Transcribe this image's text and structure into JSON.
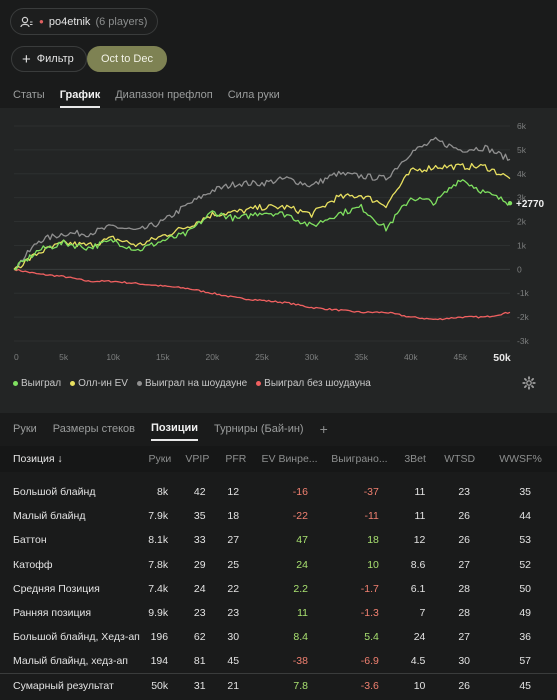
{
  "player": {
    "icon": "users-icon",
    "name": "po4etnik",
    "count": "(6 players)"
  },
  "filters": {
    "filter_label": "Фильтр",
    "date_label": "Oct to Dec"
  },
  "top_tabs": [
    {
      "label": "Статы",
      "active": false
    },
    {
      "label": "График",
      "active": true
    },
    {
      "label": "Диапазон префлоп",
      "active": false
    },
    {
      "label": "Сила руки",
      "active": false
    }
  ],
  "chart_data": {
    "type": "line",
    "x_ticks": [
      "0",
      "5k",
      "10k",
      "15k",
      "20k",
      "25k",
      "30k",
      "35k",
      "40k",
      "45k",
      "50k"
    ],
    "y_ticks": [
      "6k",
      "5k",
      "4k",
      "3k",
      "2k",
      "1k",
      "0",
      "-1k",
      "-2k",
      "-3k"
    ],
    "xlim": [
      0,
      50000
    ],
    "ylim": [
      -3000,
      6000
    ],
    "end_label": "+2770",
    "series": [
      {
        "name": "Выиграл",
        "color": "#7fe060",
        "x": [
          0,
          2500,
          5000,
          7500,
          10000,
          12500,
          15000,
          17500,
          20000,
          22500,
          25000,
          27500,
          30000,
          32500,
          35000,
          37500,
          40000,
          42500,
          45000,
          47500,
          50000
        ],
        "values": [
          0,
          800,
          1100,
          900,
          1200,
          800,
          1200,
          1500,
          2400,
          2100,
          2400,
          2300,
          1800,
          2300,
          2600,
          1700,
          3000,
          2800,
          3800,
          3200,
          2770
        ]
      },
      {
        "name": "Олл-ин EV",
        "color": "#e8e060",
        "x": [
          0,
          2500,
          5000,
          7500,
          10000,
          12500,
          15000,
          17500,
          20000,
          22500,
          25000,
          27500,
          30000,
          32500,
          35000,
          37500,
          40000,
          42500,
          45000,
          47500,
          50000
        ],
        "values": [
          0,
          700,
          1100,
          1000,
          1300,
          1000,
          1400,
          1800,
          2300,
          2400,
          2600,
          2600,
          2300,
          3000,
          3100,
          2700,
          4100,
          4300,
          4300,
          4300,
          3800
        ]
      },
      {
        "name": "Выиграл на шоудауне",
        "color": "#909090",
        "x": [
          0,
          2500,
          5000,
          7500,
          10000,
          12500,
          15000,
          17500,
          20000,
          22500,
          25000,
          27500,
          30000,
          32500,
          35000,
          37500,
          40000,
          42500,
          45000,
          47500,
          50000
        ],
        "values": [
          0,
          1200,
          1500,
          1500,
          1800,
          1600,
          2000,
          2700,
          3300,
          3600,
          3600,
          3800,
          3500,
          4000,
          3900,
          3800,
          4900,
          5400,
          5000,
          5100,
          4600
        ]
      },
      {
        "name": "Выиграл без шоудауна",
        "color": "#f06060",
        "x": [
          0,
          2500,
          5000,
          7500,
          10000,
          12500,
          15000,
          17500,
          20000,
          22500,
          25000,
          27500,
          30000,
          32500,
          35000,
          37500,
          40000,
          42500,
          45000,
          47500,
          50000
        ],
        "values": [
          0,
          -200,
          -300,
          -500,
          -500,
          -600,
          -700,
          -800,
          -1000,
          -1200,
          -1300,
          -1400,
          -1600,
          -1700,
          -1800,
          -1800,
          -2000,
          -2100,
          -2000,
          -2000,
          -1800
        ]
      }
    ]
  },
  "legend": [
    {
      "label": "Выиграл",
      "color": "#7fe060"
    },
    {
      "label": "Олл-ин EV",
      "color": "#e8e060"
    },
    {
      "label": "Выиграл на шоудауне",
      "color": "#909090"
    },
    {
      "label": "Выиграл без шоудауна",
      "color": "#f06060"
    }
  ],
  "settings_icon": "gear-icon",
  "bottom_tabs": [
    {
      "label": "Руки",
      "active": false
    },
    {
      "label": "Размеры стеков",
      "active": false
    },
    {
      "label": "Позиции",
      "active": true
    },
    {
      "label": "Турниры (Бай-ин)",
      "active": false
    }
  ],
  "add_tab_icon": "plus-icon",
  "table": {
    "headers": [
      "Позиция ↓",
      "Руки",
      "VPIP",
      "PFR",
      "EV Винре...",
      "Выиграно...",
      "3Bet",
      "WTSD",
      "WWSF%"
    ],
    "rows": [
      [
        "Большой блайнд",
        "8k",
        "42",
        "12",
        "-16",
        "-37",
        "11",
        "23",
        "35"
      ],
      [
        "Малый блайнд",
        "7.9k",
        "35",
        "18",
        "-22",
        "-11",
        "11",
        "26",
        "44"
      ],
      [
        "Баттон",
        "8.1k",
        "33",
        "27",
        "47",
        "18",
        "12",
        "26",
        "53"
      ],
      [
        "Катофф",
        "7.8k",
        "29",
        "25",
        "24",
        "10",
        "8.6",
        "27",
        "52"
      ],
      [
        "Средняя Позиция",
        "7.4k",
        "24",
        "22",
        "2.2",
        "-1.7",
        "6.1",
        "28",
        "50"
      ],
      [
        "Ранняя позиция",
        "9.9k",
        "23",
        "23",
        "11",
        "-1.3",
        "7",
        "28",
        "49"
      ],
      [
        "Большой блайнд, Хедз-ап",
        "196",
        "62",
        "30",
        "8.4",
        "5.4",
        "24",
        "27",
        "36"
      ],
      [
        "Малый блайнд, хедз-ап",
        "194",
        "81",
        "45",
        "-38",
        "-6.9",
        "4.5",
        "30",
        "57"
      ]
    ],
    "total": [
      "Сумарный результат",
      "50k",
      "31",
      "21",
      "7.8",
      "-3.6",
      "10",
      "26",
      "45"
    ]
  }
}
